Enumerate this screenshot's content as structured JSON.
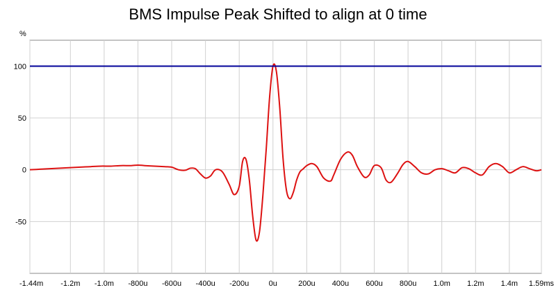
{
  "chart_data": {
    "type": "line",
    "title": "BMS Impulse Peak Shifted to align at 0 time",
    "ylabel": "%",
    "xlabel": "",
    "x_unit_suffix": "ms",
    "ylim": [
      -100,
      125
    ],
    "xlim": [
      -1.44,
      1.59
    ],
    "grid": true,
    "x_ticks": [
      {
        "value": -1.44,
        "label": "-1.44m"
      },
      {
        "value": -1.2,
        "label": "-1.2m"
      },
      {
        "value": -1.0,
        "label": "-1.0m"
      },
      {
        "value": -0.8,
        "label": "-800u"
      },
      {
        "value": -0.6,
        "label": "-600u"
      },
      {
        "value": -0.4,
        "label": "-400u"
      },
      {
        "value": -0.2,
        "label": "-200u"
      },
      {
        "value": 0.0,
        "label": "0u"
      },
      {
        "value": 0.2,
        "label": "200u"
      },
      {
        "value": 0.4,
        "label": "400u"
      },
      {
        "value": 0.6,
        "label": "600u"
      },
      {
        "value": 0.8,
        "label": "800u"
      },
      {
        "value": 1.0,
        "label": "1.0m"
      },
      {
        "value": 1.2,
        "label": "1.2m"
      },
      {
        "value": 1.4,
        "label": "1.4m"
      },
      {
        "value": 1.59,
        "label": "1.59ms"
      }
    ],
    "y_ticks": [
      {
        "value": 100,
        "label": "100"
      },
      {
        "value": 50,
        "label": "50"
      },
      {
        "value": 0,
        "label": "0"
      },
      {
        "value": -50,
        "label": "-50"
      }
    ],
    "series": [
      {
        "color": "#dd1111",
        "x": [
          -1.44,
          -1.38,
          -1.32,
          -1.26,
          -1.2,
          -1.14,
          -1.08,
          -1.02,
          -0.96,
          -0.9,
          -0.84,
          -0.8,
          -0.76,
          -0.7,
          -0.64,
          -0.6,
          -0.56,
          -0.52,
          -0.49,
          -0.46,
          -0.43,
          -0.4,
          -0.37,
          -0.34,
          -0.3,
          -0.26,
          -0.23,
          -0.2,
          -0.18,
          -0.16,
          -0.14,
          -0.12,
          -0.1,
          -0.08,
          -0.06,
          -0.04,
          -0.02,
          0.0,
          0.02,
          0.04,
          0.06,
          0.08,
          0.1,
          0.12,
          0.14,
          0.16,
          0.18,
          0.2,
          0.23,
          0.26,
          0.3,
          0.34,
          0.36,
          0.4,
          0.44,
          0.47,
          0.5,
          0.54,
          0.57,
          0.6,
          0.64,
          0.67,
          0.7,
          0.74,
          0.77,
          0.8,
          0.84,
          0.88,
          0.92,
          0.96,
          1.0,
          1.04,
          1.08,
          1.12,
          1.16,
          1.2,
          1.24,
          1.28,
          1.32,
          1.36,
          1.4,
          1.44,
          1.48,
          1.52,
          1.56,
          1.59
        ],
        "y": [
          0,
          0.5,
          1,
          1.5,
          2,
          2.5,
          3,
          3.5,
          3.5,
          4,
          4,
          4.5,
          4,
          3.5,
          3,
          2.5,
          0,
          -0.5,
          1.5,
          1,
          -4,
          -8,
          -6,
          0,
          -2,
          -14,
          -24,
          -16,
          8,
          10,
          -10,
          -45,
          -68,
          -60,
          -25,
          20,
          70,
          100,
          95,
          60,
          10,
          -20,
          -28,
          -22,
          -10,
          -2,
          1,
          4,
          6,
          3,
          -8,
          -11,
          -5,
          10,
          17,
          14,
          3,
          -7,
          -5,
          4,
          2,
          -10,
          -12,
          -3,
          5,
          8,
          3,
          -3,
          -4,
          0,
          1,
          -1,
          -3,
          2,
          1,
          -3,
          -5,
          3,
          6,
          3,
          -3,
          0,
          3,
          1,
          -1,
          0
        ]
      },
      {
        "color": "#000099",
        "x": [
          -1.44,
          1.59
        ],
        "y": [
          100,
          100
        ]
      }
    ]
  }
}
